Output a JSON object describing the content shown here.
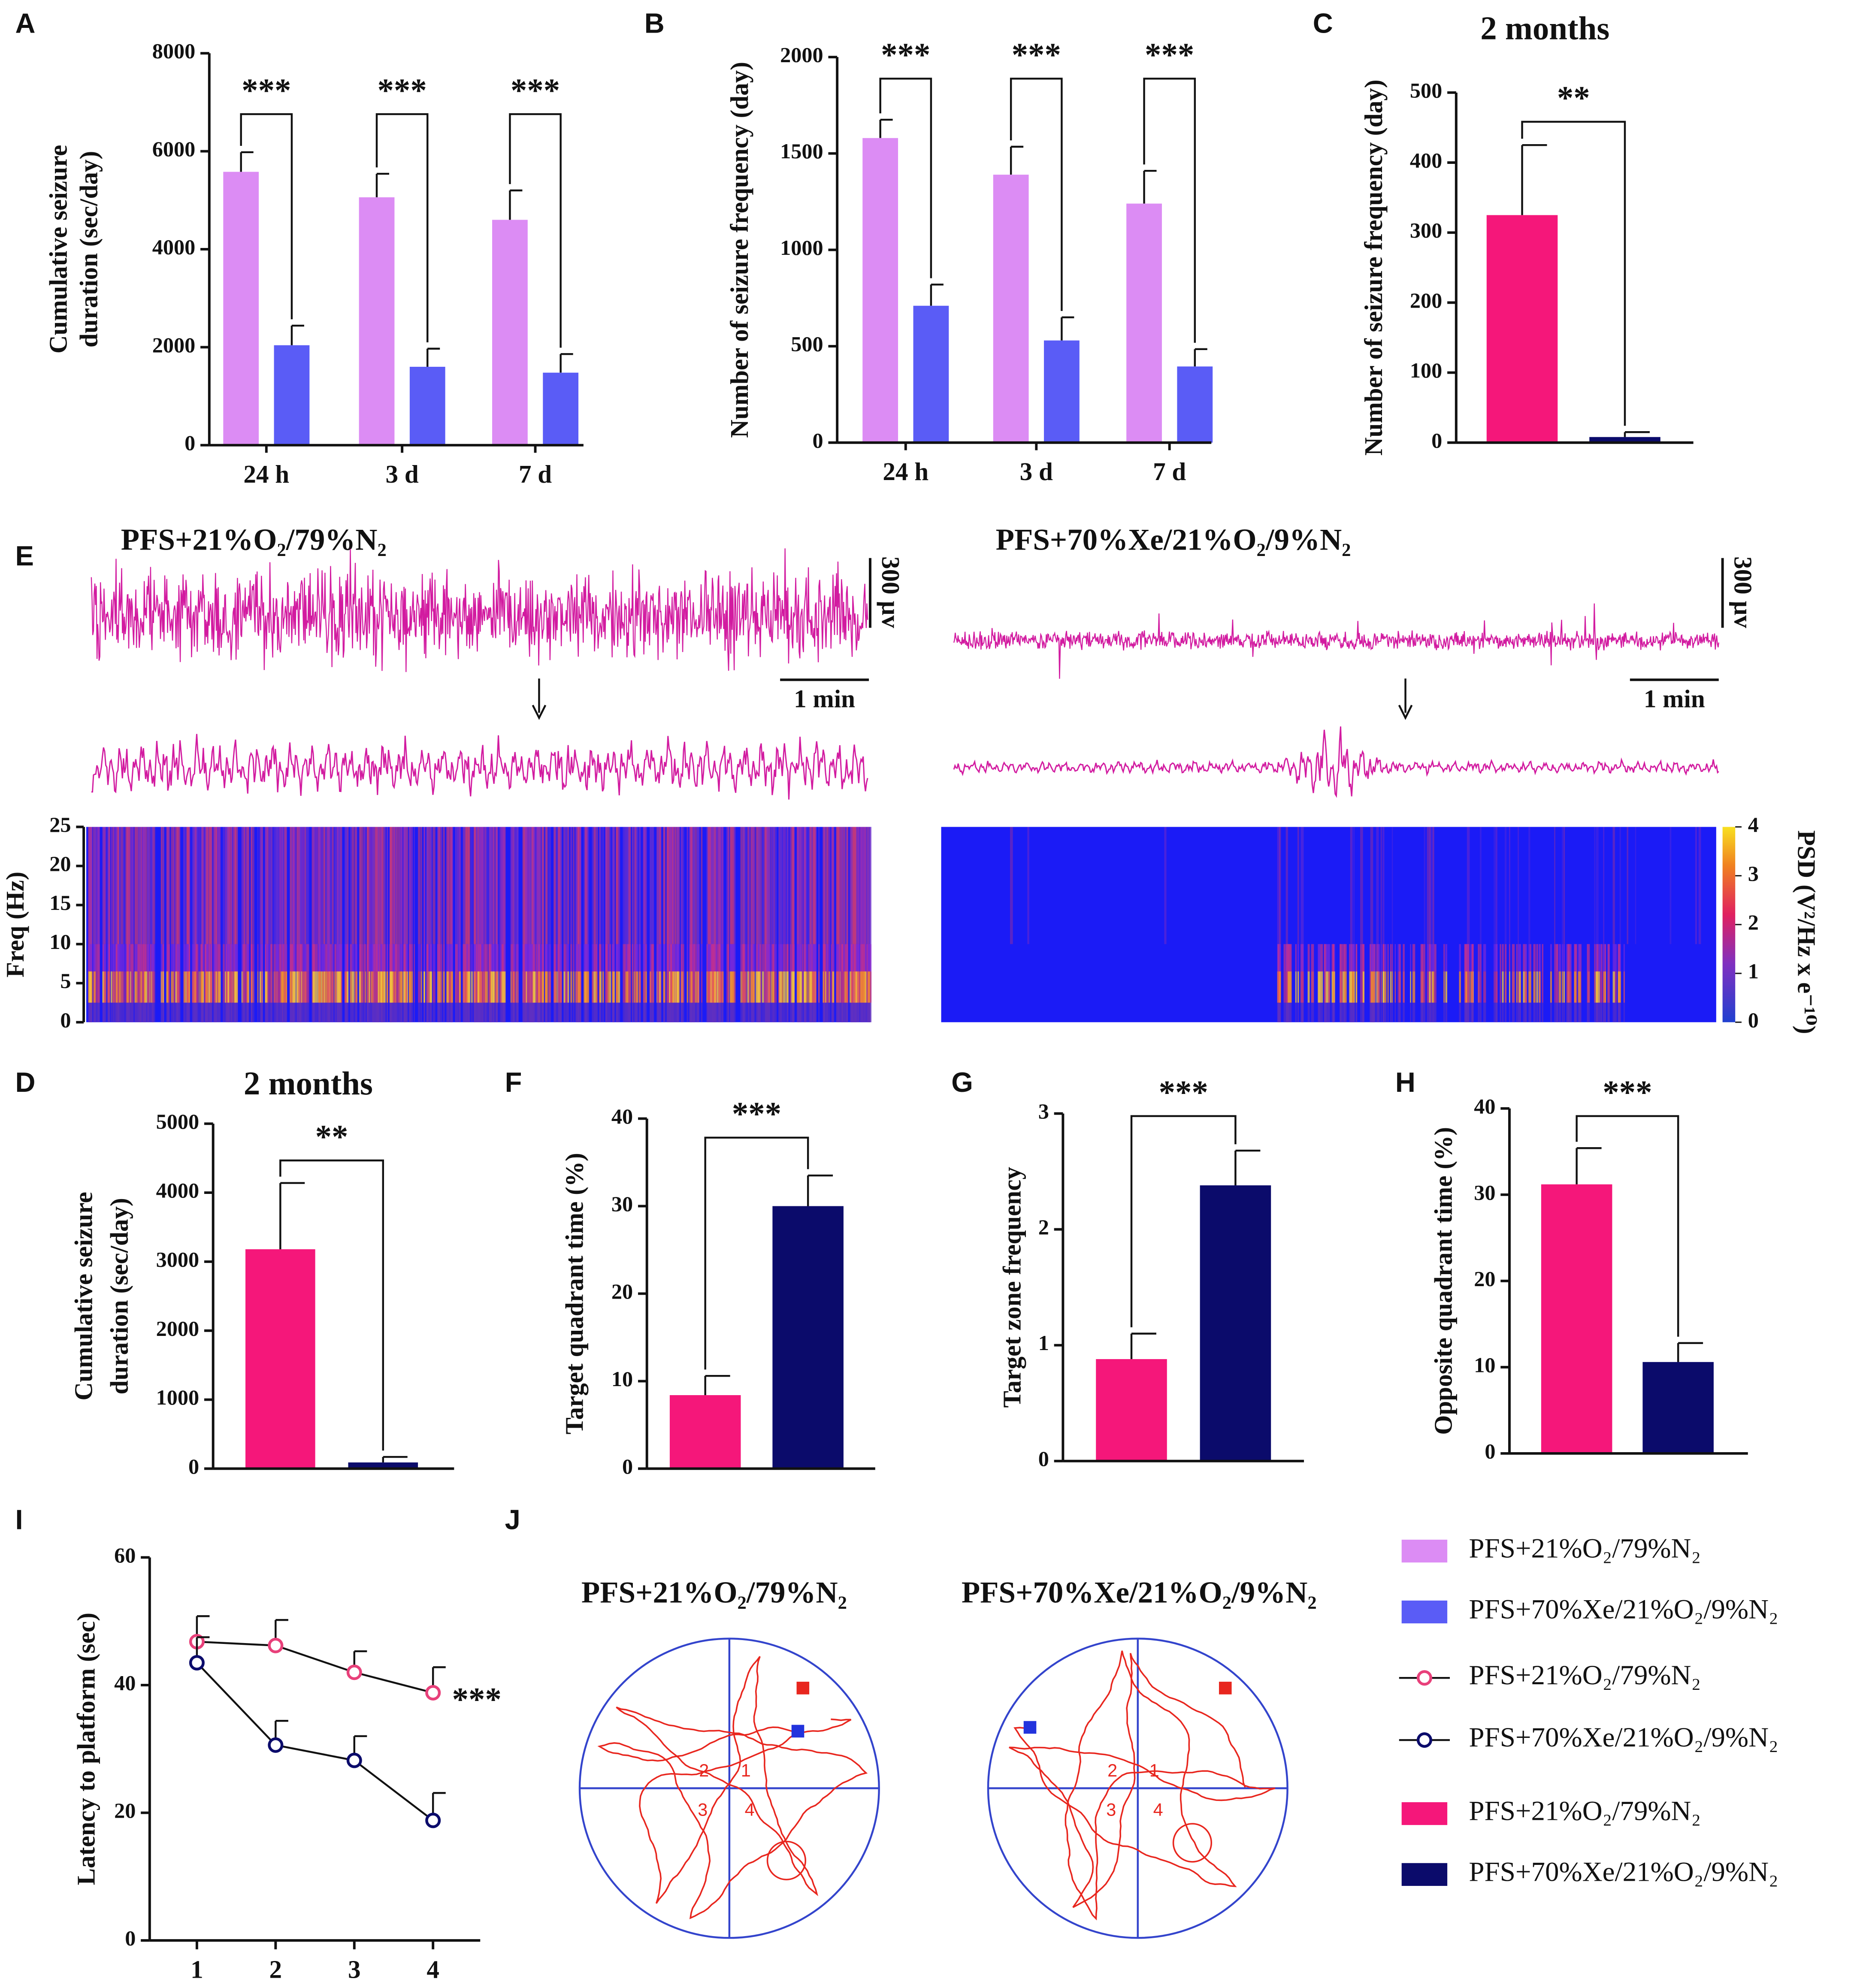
{
  "chart_data": [
    {
      "panel": "A",
      "type": "bar",
      "ylabel": [
        "Cumulative seizure",
        "duration (sec/day)"
      ],
      "categories": [
        "24 h",
        "3 d",
        "7 d"
      ],
      "series": [
        {
          "name": "PFS+21%O₂/79%N₂",
          "color": "#dc8cf4",
          "values": [
            5580,
            5060,
            4600
          ],
          "errors": [
            400,
            480,
            600
          ]
        },
        {
          "name": "PFS+70%Xe/21%O₂/9%N₂",
          "color": "#5a5cf6",
          "values": [
            2040,
            1600,
            1480
          ],
          "errors": [
            400,
            370,
            380
          ]
        }
      ],
      "ylim": [
        0,
        8000
      ],
      "yticks": [
        0,
        2000,
        4000,
        6000,
        8000
      ],
      "significance": [
        "***",
        "***",
        "***"
      ]
    },
    {
      "panel": "B",
      "type": "bar",
      "ylabel": "Number of seizure frequency (day)",
      "categories": [
        "24 h",
        "3 d",
        "7 d"
      ],
      "series": [
        {
          "color": "#dc8cf4",
          "values": [
            1580,
            1390,
            1240
          ],
          "errors": [
            95,
            145,
            170
          ]
        },
        {
          "color": "#5a5cf6",
          "values": [
            710,
            530,
            395
          ],
          "errors": [
            110,
            120,
            90
          ]
        }
      ],
      "ylim": [
        0,
        2000
      ],
      "yticks": [
        0,
        500,
        1000,
        1500,
        2000
      ],
      "significance": [
        "***",
        "***",
        "***"
      ]
    },
    {
      "panel": "C",
      "type": "bar",
      "title": "2 months",
      "ylabel": "Number of seizure frequency (day)",
      "series": [
        {
          "name": "PFS+21%O₂/79%N₂",
          "color": "#f5177a",
          "values": [
            325
          ],
          "errors": [
            100
          ]
        },
        {
          "name": "PFS+70%Xe/21%O₂/9%N₂",
          "color": "#0b0b6b",
          "values": [
            8
          ],
          "errors": [
            7
          ]
        }
      ],
      "ylim": [
        0,
        500
      ],
      "yticks": [
        0,
        100,
        200,
        300,
        400,
        500
      ],
      "significance": [
        "**"
      ]
    },
    {
      "panel": "E",
      "type": "eeg",
      "traces": [
        {
          "title": "PFS+21%O₂/79%N₂",
          "scale_amplitude": "300 µv",
          "scale_time": "1 min"
        },
        {
          "title": "PFS+70%Xe/21%O₂/9%N₂",
          "scale_amplitude": "300 µv",
          "scale_time": "1 min"
        }
      ],
      "ylabel": "Freq (Hz)",
      "ylim": [
        0,
        25
      ],
      "yticks": [
        0,
        5,
        10,
        15,
        20,
        25
      ],
      "colorbar": {
        "label": "PSD (V²/Hz x e⁻¹⁰)",
        "lim": [
          0,
          4
        ],
        "ticks": [
          0,
          1,
          2,
          3,
          4
        ]
      }
    },
    {
      "panel": "D",
      "type": "bar",
      "title": "2 months",
      "ylabel": [
        "Cumulative seizure",
        "duration (sec/day)"
      ],
      "series": [
        {
          "color": "#f5177a",
          "values": [
            3180
          ],
          "errors": [
            960
          ]
        },
        {
          "color": "#0b0b6b",
          "values": [
            90
          ],
          "errors": [
            80
          ]
        }
      ],
      "ylim": [
        0,
        5000
      ],
      "yticks": [
        0,
        1000,
        2000,
        3000,
        4000,
        5000
      ],
      "significance": [
        "**"
      ]
    },
    {
      "panel": "F",
      "type": "bar",
      "ylabel": "Target quadrant time (%)",
      "series": [
        {
          "color": "#f5177a",
          "values": [
            8.4
          ],
          "errors": [
            2.2
          ]
        },
        {
          "color": "#0b0b6b",
          "values": [
            30
          ],
          "errors": [
            3.5
          ]
        }
      ],
      "ylim": [
        0,
        40
      ],
      "yticks": [
        0,
        10,
        20,
        30,
        40
      ],
      "significance": [
        "***"
      ]
    },
    {
      "panel": "G",
      "type": "bar",
      "ylabel": "Target zone frequency",
      "series": [
        {
          "color": "#f5177a",
          "values": [
            0.88
          ],
          "errors": [
            0.22
          ]
        },
        {
          "color": "#0b0b6b",
          "values": [
            2.38
          ],
          "errors": [
            0.3
          ]
        }
      ],
      "ylim": [
        0,
        3
      ],
      "yticks": [
        0,
        1,
        2,
        3
      ],
      "significance": [
        "***"
      ]
    },
    {
      "panel": "H",
      "type": "bar",
      "ylabel": "Opposite quadrant time (%)",
      "series": [
        {
          "color": "#f5177a",
          "values": [
            31.2
          ],
          "errors": [
            4.2
          ]
        },
        {
          "color": "#0b0b6b",
          "values": [
            10.6
          ],
          "errors": [
            2.2
          ]
        }
      ],
      "ylim": [
        0,
        40
      ],
      "yticks": [
        0,
        10,
        20,
        30,
        40
      ],
      "significance": [
        "***"
      ]
    },
    {
      "panel": "I",
      "type": "line",
      "ylabel": "Latency to platform (sec)",
      "x": [
        1,
        2,
        3,
        4
      ],
      "xlim": [
        0.4,
        4.6
      ],
      "xticks": [
        1,
        2,
        3,
        4
      ],
      "ylim": [
        0,
        60
      ],
      "yticks": [
        0,
        20,
        40,
        60
      ],
      "series": [
        {
          "name": "PFS+21%O₂/79%N₂",
          "color": "#e8407a",
          "values": [
            46.8,
            46.2,
            42,
            38.8
          ],
          "errors": [
            4,
            4,
            3.3,
            4
          ]
        },
        {
          "name": "PFS+70%Xe/21%O₂/9%N₂",
          "color": "#0b0b6b",
          "values": [
            43.5,
            30.6,
            28.2,
            18.8
          ],
          "errors": [
            4,
            3.8,
            3.8,
            4.3
          ]
        }
      ],
      "significance": "***"
    },
    {
      "panel": "J",
      "type": "track",
      "titles": [
        "PFS+21%O₂/79%N₂",
        "PFS+70%Xe/21%O₂/9%N₂"
      ],
      "quadrant_labels": [
        "1",
        "2",
        "3",
        "4"
      ]
    }
  ]
}
